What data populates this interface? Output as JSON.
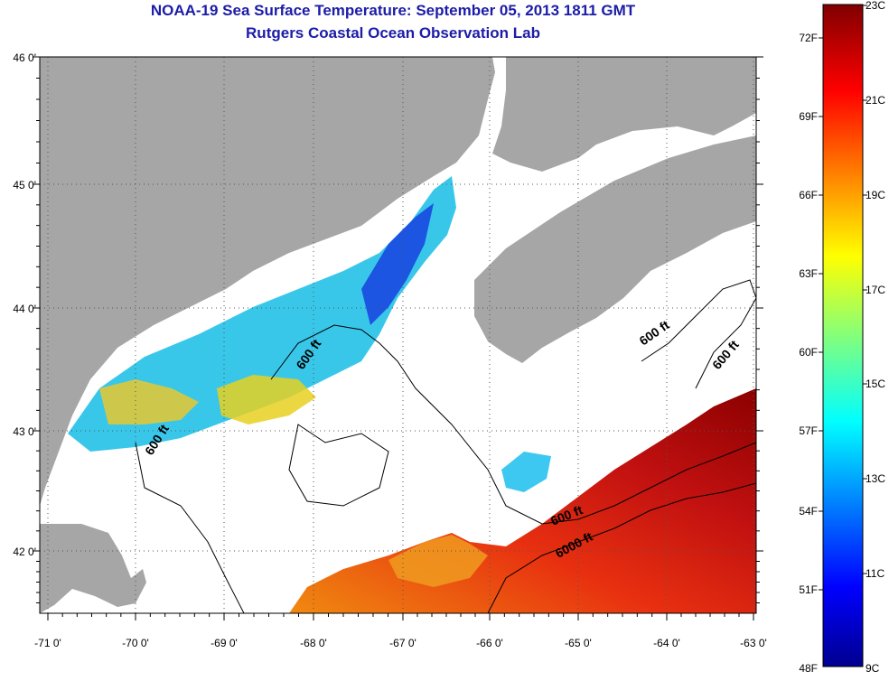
{
  "title": "NOAA-19 Sea Surface Temperature:  September 05, 2013 1811 GMT",
  "subtitle": "Rutgers Coastal Ocean Observation Lab",
  "map": {
    "lat_labels": [
      "46 0'",
      "45 0'",
      "44 0'",
      "43 0'",
      "42 0'"
    ],
    "lon_labels": [
      "-71 0'",
      "-70 0'",
      "-69 0'",
      "-68 0'",
      "-67 0'",
      "-66 0'",
      "-65 0'",
      "-64 0'",
      "-63 0'"
    ],
    "lon_range": [
      -71,
      -63
    ],
    "lat_range": [
      41.5,
      46
    ],
    "grid": true,
    "contour_labels": [
      "600 ft",
      "600 ft",
      "600 ft",
      "600 ft",
      "600 ft",
      "6000 ft"
    ],
    "colors": {
      "land": "#a6a6a6",
      "cloud": "#ffffff",
      "grid": "#555555"
    }
  },
  "colorbar": {
    "fahrenheit_labels": [
      "72F",
      "69F",
      "66F",
      "63F",
      "60F",
      "57F",
      "54F",
      "51F",
      "48F"
    ],
    "celsius_labels": [
      "23C",
      "21C",
      "19C",
      "17C",
      "15C",
      "13C",
      "11C",
      "9C"
    ],
    "range_c": [
      9,
      23
    ],
    "colormap": "jet"
  }
}
